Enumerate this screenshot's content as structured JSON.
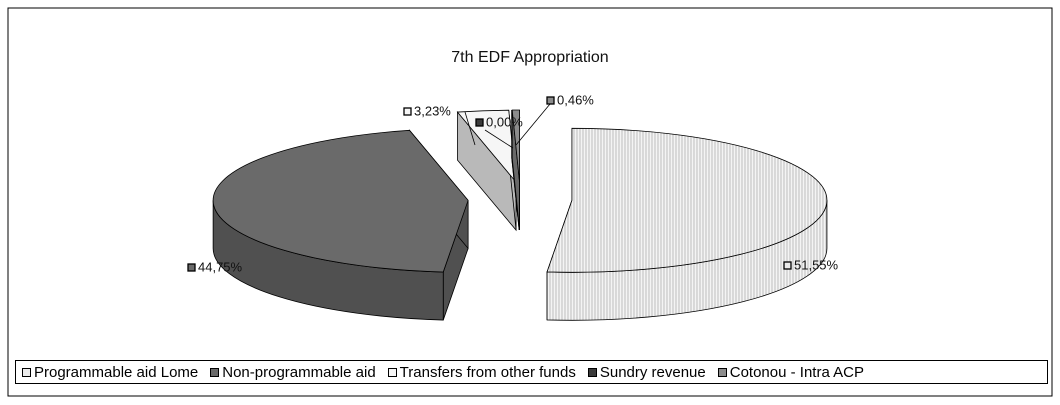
{
  "chart_data": {
    "type": "pie",
    "title": "7th EDF Appropriation",
    "categories": [
      "Programmable aid Lome",
      "Non-programmable aid",
      "Transfers from other funds",
      "Sundry revenue",
      "Cotonou - Intra ACP"
    ],
    "values": [
      51.55,
      44.75,
      3.23,
      0.0,
      0.46
    ],
    "value_labels": [
      "51,55%",
      "44,75%",
      "3,23%",
      "0,00%",
      "0,46%"
    ],
    "colors": [
      "#ececec",
      "#6a6a6a",
      "#f6f6f6",
      "#3a3a3a",
      "#8c8c8c"
    ],
    "legend": "bottom"
  }
}
